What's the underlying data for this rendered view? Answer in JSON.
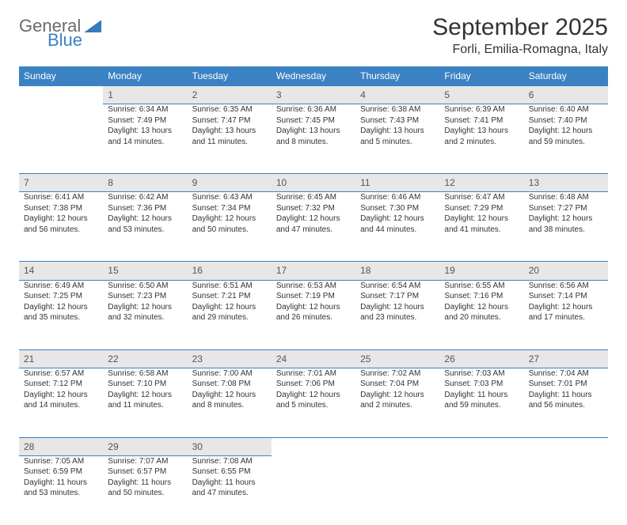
{
  "brand": {
    "general": "General",
    "blue": "Blue"
  },
  "title": "September 2025",
  "location": "Forli, Emilia-Romagna, Italy",
  "colors": {
    "header_bg": "#3a82c4",
    "header_text": "#ffffff",
    "daynum_bg": "#e7e7e7",
    "text": "#333333",
    "rule": "#3a82c4"
  },
  "day_headers": [
    "Sunday",
    "Monday",
    "Tuesday",
    "Wednesday",
    "Thursday",
    "Friday",
    "Saturday"
  ],
  "weeks": [
    {
      "nums": [
        "",
        "1",
        "2",
        "3",
        "4",
        "5",
        "6"
      ],
      "cells": [
        null,
        {
          "sr": "Sunrise: 6:34 AM",
          "ss": "Sunset: 7:49 PM",
          "dl1": "Daylight: 13 hours",
          "dl2": "and 14 minutes."
        },
        {
          "sr": "Sunrise: 6:35 AM",
          "ss": "Sunset: 7:47 PM",
          "dl1": "Daylight: 13 hours",
          "dl2": "and 11 minutes."
        },
        {
          "sr": "Sunrise: 6:36 AM",
          "ss": "Sunset: 7:45 PM",
          "dl1": "Daylight: 13 hours",
          "dl2": "and 8 minutes."
        },
        {
          "sr": "Sunrise: 6:38 AM",
          "ss": "Sunset: 7:43 PM",
          "dl1": "Daylight: 13 hours",
          "dl2": "and 5 minutes."
        },
        {
          "sr": "Sunrise: 6:39 AM",
          "ss": "Sunset: 7:41 PM",
          "dl1": "Daylight: 13 hours",
          "dl2": "and 2 minutes."
        },
        {
          "sr": "Sunrise: 6:40 AM",
          "ss": "Sunset: 7:40 PM",
          "dl1": "Daylight: 12 hours",
          "dl2": "and 59 minutes."
        }
      ]
    },
    {
      "nums": [
        "7",
        "8",
        "9",
        "10",
        "11",
        "12",
        "13"
      ],
      "cells": [
        {
          "sr": "Sunrise: 6:41 AM",
          "ss": "Sunset: 7:38 PM",
          "dl1": "Daylight: 12 hours",
          "dl2": "and 56 minutes."
        },
        {
          "sr": "Sunrise: 6:42 AM",
          "ss": "Sunset: 7:36 PM",
          "dl1": "Daylight: 12 hours",
          "dl2": "and 53 minutes."
        },
        {
          "sr": "Sunrise: 6:43 AM",
          "ss": "Sunset: 7:34 PM",
          "dl1": "Daylight: 12 hours",
          "dl2": "and 50 minutes."
        },
        {
          "sr": "Sunrise: 6:45 AM",
          "ss": "Sunset: 7:32 PM",
          "dl1": "Daylight: 12 hours",
          "dl2": "and 47 minutes."
        },
        {
          "sr": "Sunrise: 6:46 AM",
          "ss": "Sunset: 7:30 PM",
          "dl1": "Daylight: 12 hours",
          "dl2": "and 44 minutes."
        },
        {
          "sr": "Sunrise: 6:47 AM",
          "ss": "Sunset: 7:29 PM",
          "dl1": "Daylight: 12 hours",
          "dl2": "and 41 minutes."
        },
        {
          "sr": "Sunrise: 6:48 AM",
          "ss": "Sunset: 7:27 PM",
          "dl1": "Daylight: 12 hours",
          "dl2": "and 38 minutes."
        }
      ]
    },
    {
      "nums": [
        "14",
        "15",
        "16",
        "17",
        "18",
        "19",
        "20"
      ],
      "cells": [
        {
          "sr": "Sunrise: 6:49 AM",
          "ss": "Sunset: 7:25 PM",
          "dl1": "Daylight: 12 hours",
          "dl2": "and 35 minutes."
        },
        {
          "sr": "Sunrise: 6:50 AM",
          "ss": "Sunset: 7:23 PM",
          "dl1": "Daylight: 12 hours",
          "dl2": "and 32 minutes."
        },
        {
          "sr": "Sunrise: 6:51 AM",
          "ss": "Sunset: 7:21 PM",
          "dl1": "Daylight: 12 hours",
          "dl2": "and 29 minutes."
        },
        {
          "sr": "Sunrise: 6:53 AM",
          "ss": "Sunset: 7:19 PM",
          "dl1": "Daylight: 12 hours",
          "dl2": "and 26 minutes."
        },
        {
          "sr": "Sunrise: 6:54 AM",
          "ss": "Sunset: 7:17 PM",
          "dl1": "Daylight: 12 hours",
          "dl2": "and 23 minutes."
        },
        {
          "sr": "Sunrise: 6:55 AM",
          "ss": "Sunset: 7:16 PM",
          "dl1": "Daylight: 12 hours",
          "dl2": "and 20 minutes."
        },
        {
          "sr": "Sunrise: 6:56 AM",
          "ss": "Sunset: 7:14 PM",
          "dl1": "Daylight: 12 hours",
          "dl2": "and 17 minutes."
        }
      ]
    },
    {
      "nums": [
        "21",
        "22",
        "23",
        "24",
        "25",
        "26",
        "27"
      ],
      "cells": [
        {
          "sr": "Sunrise: 6:57 AM",
          "ss": "Sunset: 7:12 PM",
          "dl1": "Daylight: 12 hours",
          "dl2": "and 14 minutes."
        },
        {
          "sr": "Sunrise: 6:58 AM",
          "ss": "Sunset: 7:10 PM",
          "dl1": "Daylight: 12 hours",
          "dl2": "and 11 minutes."
        },
        {
          "sr": "Sunrise: 7:00 AM",
          "ss": "Sunset: 7:08 PM",
          "dl1": "Daylight: 12 hours",
          "dl2": "and 8 minutes."
        },
        {
          "sr": "Sunrise: 7:01 AM",
          "ss": "Sunset: 7:06 PM",
          "dl1": "Daylight: 12 hours",
          "dl2": "and 5 minutes."
        },
        {
          "sr": "Sunrise: 7:02 AM",
          "ss": "Sunset: 7:04 PM",
          "dl1": "Daylight: 12 hours",
          "dl2": "and 2 minutes."
        },
        {
          "sr": "Sunrise: 7:03 AM",
          "ss": "Sunset: 7:03 PM",
          "dl1": "Daylight: 11 hours",
          "dl2": "and 59 minutes."
        },
        {
          "sr": "Sunrise: 7:04 AM",
          "ss": "Sunset: 7:01 PM",
          "dl1": "Daylight: 11 hours",
          "dl2": "and 56 minutes."
        }
      ]
    },
    {
      "nums": [
        "28",
        "29",
        "30",
        "",
        "",
        "",
        ""
      ],
      "cells": [
        {
          "sr": "Sunrise: 7:05 AM",
          "ss": "Sunset: 6:59 PM",
          "dl1": "Daylight: 11 hours",
          "dl2": "and 53 minutes."
        },
        {
          "sr": "Sunrise: 7:07 AM",
          "ss": "Sunset: 6:57 PM",
          "dl1": "Daylight: 11 hours",
          "dl2": "and 50 minutes."
        },
        {
          "sr": "Sunrise: 7:08 AM",
          "ss": "Sunset: 6:55 PM",
          "dl1": "Daylight: 11 hours",
          "dl2": "and 47 minutes."
        },
        null,
        null,
        null,
        null
      ]
    }
  ]
}
